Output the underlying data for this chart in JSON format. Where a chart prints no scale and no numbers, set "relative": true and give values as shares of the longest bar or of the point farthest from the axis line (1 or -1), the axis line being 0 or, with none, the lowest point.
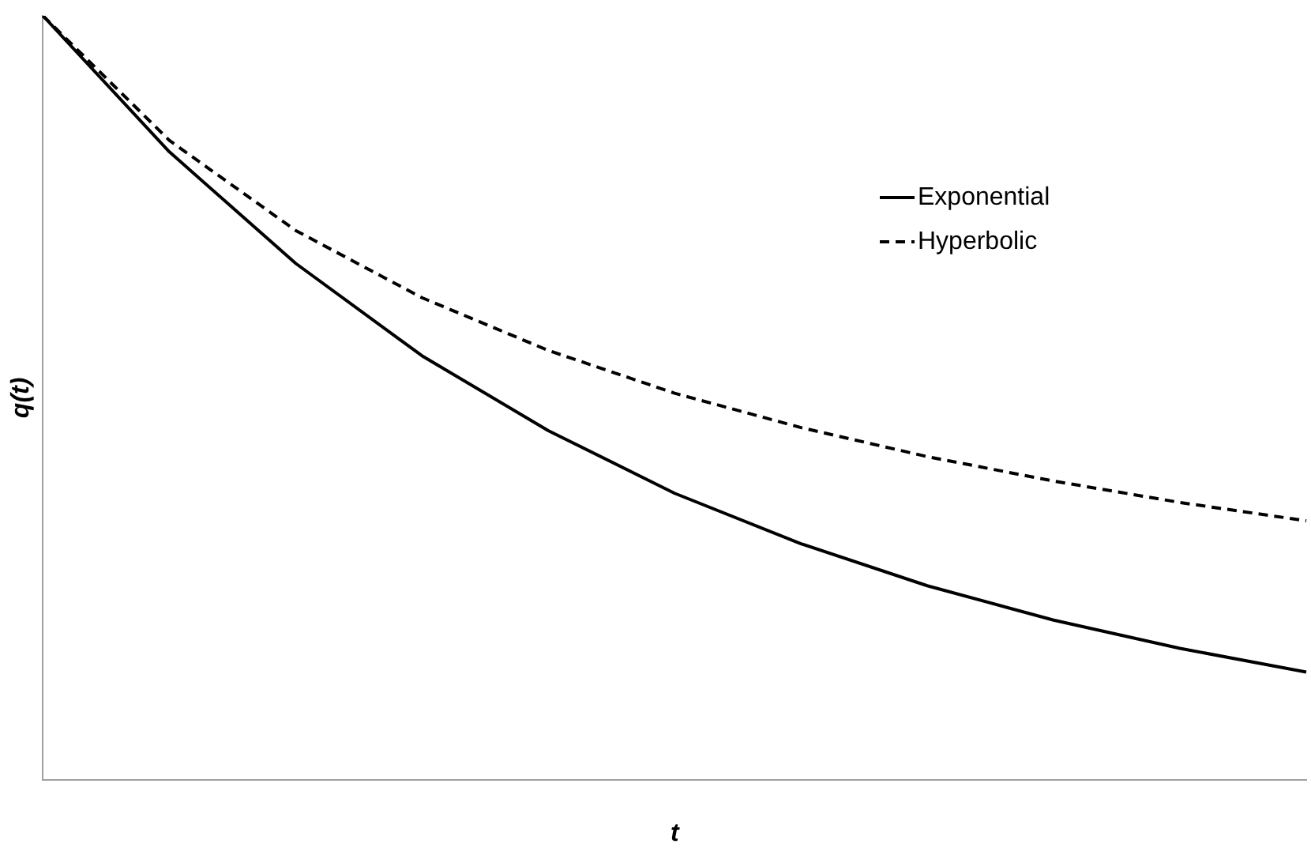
{
  "chart_data": {
    "type": "line",
    "relative": true,
    "xlabel": "t",
    "ylabel": "q(t)",
    "categories": [
      null,
      null,
      null,
      null,
      null,
      null,
      null,
      null,
      null,
      null,
      null
    ],
    "grid": false,
    "legend": "top right",
    "marker": "none",
    "series": [
      {
        "name": "Exponential",
        "color": "#000000",
        "line_style": "solid",
        "values": [
          1,
          0.822,
          0.676,
          0.555,
          0.457,
          0.375,
          0.309,
          0.254,
          0.209,
          0.172,
          0.141
        ]
      },
      {
        "name": "Hyperbolic",
        "color": "#000000",
        "line_style": "dashed",
        "values": [
          1,
          0.837,
          0.719,
          0.631,
          0.562,
          0.506,
          0.461,
          0.423,
          0.391,
          0.363,
          0.339
        ]
      }
    ]
  }
}
